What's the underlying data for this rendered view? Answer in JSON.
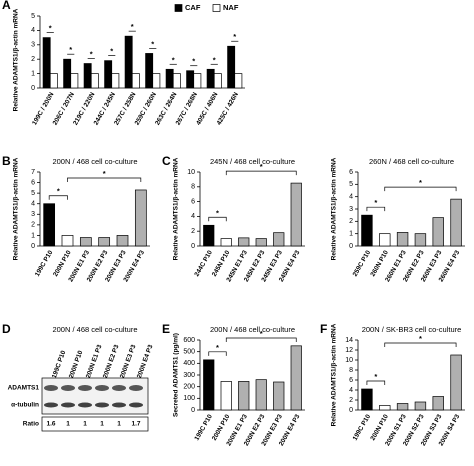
{
  "chart_data": [
    {
      "type": "bar",
      "panel": "A",
      "ylabel": "Relative ADAMTS1/β-actin mRNA",
      "categories": [
        "199C / 200N",
        "206C / 207N",
        "219C / 220N",
        "244C / 245N",
        "257C / 258N",
        "259C / 260N",
        "263C / 264N",
        "267C / 268N",
        "405C / 406N",
        "425C / 426N"
      ],
      "series": [
        {
          "name": "CAF",
          "color": "#000000",
          "values": [
            3.5,
            2.0,
            1.7,
            1.9,
            3.6,
            2.4,
            1.3,
            1.2,
            1.3,
            2.9
          ]
        },
        {
          "name": "NAF",
          "color": "#ffffff",
          "values": [
            1,
            1,
            1,
            1,
            1,
            1,
            1,
            1,
            1,
            1
          ]
        }
      ],
      "ylim": [
        0,
        5
      ],
      "yticks": [
        0,
        1,
        2,
        3,
        4,
        5
      ],
      "legend": "top-right",
      "annotations": [
        "*",
        "*",
        "*",
        "*",
        "*",
        "*",
        "*",
        "*",
        "*",
        "*"
      ]
    },
    {
      "type": "bar",
      "panel": "B",
      "title": "200N / 468 cell co-culture",
      "ylabel": "Relative ADAMTS1/β-actin mRNA",
      "categories": [
        "199C P10",
        "200N P10",
        "200N E1 P3",
        "200N E2 P3",
        "200N E3 P3",
        "200N E4 P3"
      ],
      "values": [
        4.0,
        1.0,
        0.8,
        0.8,
        1.0,
        5.3
      ],
      "colors": [
        "#000000",
        "#ffffff",
        "#b0b0b0",
        "#b0b0b0",
        "#b0b0b0",
        "#b0b0b0"
      ],
      "ylim": [
        0,
        7
      ],
      "yticks": [
        0,
        1,
        2,
        3,
        4,
        5,
        6,
        7
      ],
      "significance": [
        {
          "pair": [
            0,
            1
          ],
          "label": "*"
        },
        {
          "pair": [
            1,
            5
          ],
          "label": "*"
        }
      ]
    },
    {
      "type": "bar",
      "panel": "C",
      "title": "245N / 468 cell co-culture",
      "ylabel": "Relative ADAMTS1/β-actin mRNA",
      "categories": [
        "244C P10",
        "245N P10",
        "245N E1 P3",
        "245N E2 P3",
        "245N E3 P3",
        "245N E4 P3"
      ],
      "values": [
        2.8,
        1.0,
        1.1,
        1.0,
        1.8,
        8.5
      ],
      "colors": [
        "#000000",
        "#ffffff",
        "#b0b0b0",
        "#b0b0b0",
        "#b0b0b0",
        "#b0b0b0"
      ],
      "ylim": [
        0,
        10
      ],
      "yticks": [
        0,
        2,
        4,
        6,
        8,
        10
      ],
      "significance": [
        {
          "pair": [
            0,
            1
          ],
          "label": "*"
        },
        {
          "pair": [
            1,
            5
          ],
          "label": "*"
        }
      ]
    },
    {
      "type": "bar",
      "title": "260N / 468 cell co-culture",
      "ylabel": "Relative ADAMTS1/β-actin mRNA",
      "categories": [
        "259C P10",
        "260N P10",
        "260N E1 P3",
        "260N E2 P3",
        "260N E3 P3",
        "260N E4 P3"
      ],
      "values": [
        2.5,
        1.0,
        1.1,
        1.0,
        2.3,
        3.8
      ],
      "colors": [
        "#000000",
        "#ffffff",
        "#b0b0b0",
        "#b0b0b0",
        "#b0b0b0",
        "#b0b0b0"
      ],
      "ylim": [
        0,
        6
      ],
      "yticks": [
        0,
        1,
        2,
        3,
        4,
        5,
        6
      ],
      "significance": [
        {
          "pair": [
            0,
            1
          ],
          "label": "*"
        },
        {
          "pair": [
            1,
            5
          ],
          "label": "*"
        }
      ]
    },
    {
      "type": "bar",
      "panel": "E",
      "title": "200N / 468 cell co-culture",
      "ylabel": "Secreted ADAMTS1 (pg/ml)",
      "categories": [
        "199C P10",
        "200N P10",
        "200N E1 P3",
        "200N E2 P3",
        "200N E3 P3",
        "200N E4 P3"
      ],
      "values": [
        430,
        245,
        245,
        260,
        240,
        550
      ],
      "colors": [
        "#000000",
        "#ffffff",
        "#b0b0b0",
        "#b0b0b0",
        "#b0b0b0",
        "#b0b0b0"
      ],
      "ylim": [
        0,
        600
      ],
      "yticks": [
        0,
        100,
        200,
        300,
        400,
        500,
        600
      ],
      "significance": [
        {
          "pair": [
            0,
            1
          ],
          "label": "*"
        },
        {
          "pair": [
            1,
            5
          ],
          "label": "*"
        }
      ]
    },
    {
      "type": "bar",
      "panel": "F",
      "title": "200N / SK-BR3 cell co-culture",
      "ylabel": "Relative ADAMTS1/β-actin mRNA",
      "categories": [
        "199C P10",
        "200N P10",
        "200N S1 P3",
        "200N S2 P3",
        "200N S3 P3",
        "200N S4 P3"
      ],
      "values": [
        4.2,
        0.9,
        1.3,
        1.6,
        2.7,
        11.0
      ],
      "colors": [
        "#000000",
        "#ffffff",
        "#b0b0b0",
        "#b0b0b0",
        "#b0b0b0",
        "#b0b0b0"
      ],
      "ylim": [
        0,
        14
      ],
      "yticks": [
        0,
        2,
        4,
        6,
        8,
        10,
        12,
        14
      ],
      "significance": [
        {
          "pair": [
            0,
            1
          ],
          "label": "*"
        },
        {
          "pair": [
            1,
            5
          ],
          "label": "*"
        }
      ]
    }
  ],
  "western_blot": {
    "panel": "D",
    "title": "200N / 468 cell co-culture",
    "lanes": [
      "199C P10",
      "200N P10",
      "200N E1 P3",
      "200N E2 P3",
      "200N E3 P3",
      "200N E4 P3"
    ],
    "rows": [
      "ADAMTS1",
      "α-tubulin"
    ],
    "ratio_label": "Ratio",
    "ratios": [
      1.6,
      1,
      1,
      1,
      1,
      1.7
    ]
  }
}
